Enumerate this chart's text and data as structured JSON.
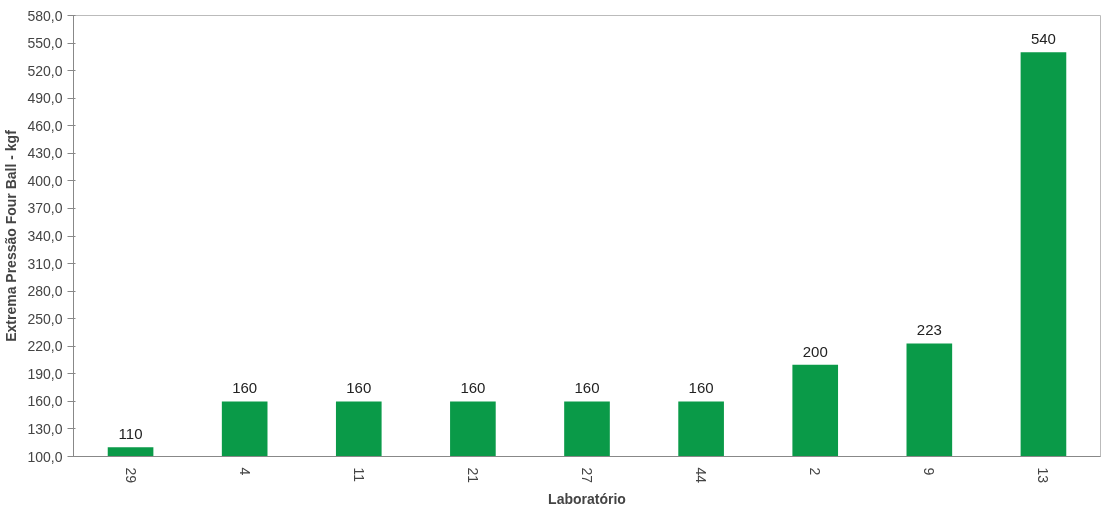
{
  "chart_data": {
    "type": "bar",
    "xlabel": "Laboratório",
    "ylabel": "Extrema Pressão Four Ball - kgf",
    "categories": [
      "29",
      "4",
      "11",
      "21",
      "27",
      "44",
      "2",
      "9",
      "13"
    ],
    "values": [
      110,
      160,
      160,
      160,
      160,
      160,
      200,
      223,
      540
    ],
    "color": "#0a9a48",
    "ylim": [
      100,
      580
    ],
    "yticks": [
      {
        "value": 100,
        "label": "100,0"
      },
      {
        "value": 130,
        "label": "130,0"
      },
      {
        "value": 160,
        "label": "160,0"
      },
      {
        "value": 190,
        "label": "190,0"
      },
      {
        "value": 220,
        "label": "220,0"
      },
      {
        "value": 250,
        "label": "250,0"
      },
      {
        "value": 280,
        "label": "280,0"
      },
      {
        "value": 310,
        "label": "310,0"
      },
      {
        "value": 340,
        "label": "340,0"
      },
      {
        "value": 370,
        "label": "370,0"
      },
      {
        "value": 400,
        "label": "400,0"
      },
      {
        "value": 430,
        "label": "430,0"
      },
      {
        "value": 460,
        "label": "460,0"
      },
      {
        "value": 490,
        "label": "490,0"
      },
      {
        "value": 520,
        "label": "520,0"
      },
      {
        "value": 550,
        "label": "550,0"
      },
      {
        "value": 580,
        "label": "580,0"
      }
    ],
    "data_labels": true,
    "grid": false
  }
}
